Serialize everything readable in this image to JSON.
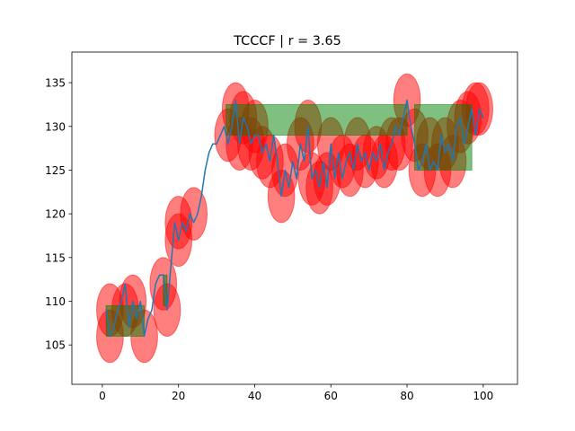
{
  "chart_data": {
    "type": "line",
    "title": "TCCCF | r = 3.65",
    "xlabel": "",
    "ylabel": "",
    "xlim": [
      -8,
      109
    ],
    "ylim": [
      100.5,
      138.5
    ],
    "x_ticks": [
      0,
      20,
      40,
      60,
      80,
      100
    ],
    "y_ticks": [
      105,
      110,
      115,
      120,
      125,
      130,
      135
    ],
    "grid": false,
    "colors": {
      "line": "#1f77b4",
      "ellipse": "#ff0000",
      "rect": "#008000"
    },
    "series": [
      {
        "x": [
          1,
          2,
          3,
          4,
          5,
          6,
          7,
          8,
          9,
          10,
          11,
          12,
          13,
          14,
          15,
          16,
          17,
          18,
          19,
          20,
          21,
          22,
          23,
          24,
          25,
          26,
          27,
          28,
          29,
          30,
          31,
          32,
          33,
          34,
          35,
          36,
          37,
          38,
          39,
          40,
          41,
          42,
          43,
          44,
          45,
          46,
          47,
          48,
          49,
          50,
          51,
          52,
          53,
          54,
          55,
          56,
          57,
          58,
          59,
          60,
          61,
          62,
          63,
          64,
          65,
          66,
          67,
          68,
          69,
          70,
          71,
          72,
          73,
          74,
          75,
          76,
          77,
          78,
          79,
          80,
          81,
          82,
          83,
          84,
          85,
          86,
          87,
          88,
          89,
          90,
          91,
          92,
          93,
          94,
          95,
          96,
          97,
          98,
          99,
          100
        ],
        "y": [
          109,
          106,
          107,
          109,
          110,
          112,
          107,
          110,
          108,
          110,
          106,
          108,
          109,
          112,
          113,
          113,
          109,
          114,
          119,
          117,
          119,
          118,
          120,
          119,
          120,
          122,
          125,
          127,
          128,
          128,
          129,
          130,
          128,
          130,
          133,
          128,
          131,
          130,
          128,
          129,
          129,
          127,
          128,
          126,
          129,
          126,
          122,
          125,
          123,
          126,
          124,
          128,
          126,
          130,
          124,
          125,
          123,
          126,
          123,
          128,
          124,
          127,
          124,
          126,
          127,
          125,
          128,
          126,
          127,
          125,
          127,
          126,
          128,
          125,
          127,
          128,
          130,
          129,
          131,
          133,
          130,
          128,
          125,
          126,
          128,
          125,
          126,
          125,
          129,
          127,
          128,
          126,
          130,
          131,
          128,
          130,
          132,
          129,
          132,
          131
        ]
      }
    ],
    "ellipses": [
      {
        "x": 2,
        "y": 109,
        "w": 7,
        "h": 6
      },
      {
        "x": 2,
        "y": 106,
        "w": 7,
        "h": 6
      },
      {
        "x": 6,
        "y": 109,
        "w": 7,
        "h": 6
      },
      {
        "x": 8,
        "y": 110,
        "w": 7,
        "h": 6
      },
      {
        "x": 11,
        "y": 106,
        "w": 7,
        "h": 6
      },
      {
        "x": 16,
        "y": 112,
        "w": 7,
        "h": 6
      },
      {
        "x": 17,
        "y": 109,
        "w": 7,
        "h": 6
      },
      {
        "x": 20,
        "y": 119,
        "w": 7,
        "h": 6
      },
      {
        "x": 20,
        "y": 117,
        "w": 7,
        "h": 6
      },
      {
        "x": 24,
        "y": 120,
        "w": 7,
        "h": 6
      },
      {
        "x": 33,
        "y": 129,
        "w": 7,
        "h": 6
      },
      {
        "x": 35,
        "y": 132,
        "w": 7,
        "h": 6
      },
      {
        "x": 36,
        "y": 128,
        "w": 7,
        "h": 6
      },
      {
        "x": 37,
        "y": 131,
        "w": 7,
        "h": 6
      },
      {
        "x": 39,
        "y": 128,
        "w": 7,
        "h": 6
      },
      {
        "x": 40,
        "y": 130,
        "w": 7,
        "h": 6
      },
      {
        "x": 42,
        "y": 127,
        "w": 7,
        "h": 6
      },
      {
        "x": 44,
        "y": 126,
        "w": 7,
        "h": 6
      },
      {
        "x": 47,
        "y": 122,
        "w": 7,
        "h": 6
      },
      {
        "x": 48,
        "y": 125,
        "w": 7,
        "h": 6
      },
      {
        "x": 52,
        "y": 128,
        "w": 7,
        "h": 6
      },
      {
        "x": 54,
        "y": 130,
        "w": 7,
        "h": 6
      },
      {
        "x": 55,
        "y": 124,
        "w": 7,
        "h": 6
      },
      {
        "x": 57,
        "y": 123,
        "w": 7,
        "h": 6
      },
      {
        "x": 59,
        "y": 124,
        "w": 7,
        "h": 6
      },
      {
        "x": 60,
        "y": 128,
        "w": 7,
        "h": 6
      },
      {
        "x": 63,
        "y": 126,
        "w": 7,
        "h": 6
      },
      {
        "x": 65,
        "y": 125,
        "w": 7,
        "h": 6
      },
      {
        "x": 67,
        "y": 128,
        "w": 7,
        "h": 6
      },
      {
        "x": 69,
        "y": 126,
        "w": 7,
        "h": 6
      },
      {
        "x": 72,
        "y": 127,
        "w": 7,
        "h": 6
      },
      {
        "x": 74,
        "y": 126,
        "w": 7,
        "h": 6
      },
      {
        "x": 76,
        "y": 128,
        "w": 7,
        "h": 6
      },
      {
        "x": 78,
        "y": 128,
        "w": 7,
        "h": 6
      },
      {
        "x": 80,
        "y": 133,
        "w": 7,
        "h": 6
      },
      {
        "x": 82,
        "y": 129,
        "w": 7,
        "h": 6
      },
      {
        "x": 84,
        "y": 125,
        "w": 7,
        "h": 6
      },
      {
        "x": 86,
        "y": 128,
        "w": 7,
        "h": 6
      },
      {
        "x": 88,
        "y": 125,
        "w": 7,
        "h": 6
      },
      {
        "x": 90,
        "y": 128,
        "w": 7,
        "h": 6
      },
      {
        "x": 92,
        "y": 126,
        "w": 7,
        "h": 6
      },
      {
        "x": 94,
        "y": 130,
        "w": 7,
        "h": 6
      },
      {
        "x": 96,
        "y": 131,
        "w": 7,
        "h": 6
      },
      {
        "x": 98,
        "y": 132,
        "w": 7,
        "h": 6
      },
      {
        "x": 99,
        "y": 132,
        "w": 7,
        "h": 6
      }
    ],
    "rects": [
      {
        "x0": 1,
        "x1": 11,
        "y0": 106,
        "y1": 109.5
      },
      {
        "x0": 16,
        "x1": 17,
        "y0": 109.5,
        "y1": 113
      },
      {
        "x0": 32.5,
        "x1": 80,
        "y0": 129,
        "y1": 132.5
      },
      {
        "x0": 82,
        "x1": 97,
        "y0": 125,
        "y1": 132.5
      }
    ]
  }
}
